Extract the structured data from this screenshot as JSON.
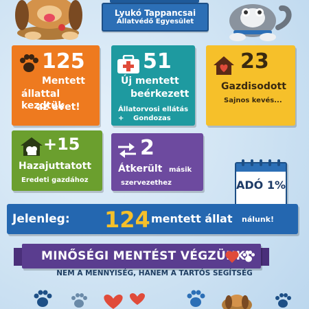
{
  "header": {
    "org_name": "Lyukó Tappancsai",
    "org_subtitle": "Állatvédő Egyesület"
  },
  "stats": {
    "start": {
      "number": "125",
      "line1": "Mentett",
      "line2": "állattal kezdtük",
      "line3": "az évet!",
      "icon": "paw-icon"
    },
    "new": {
      "number": "51",
      "line1": "Új mentett",
      "line2": "beérkezett",
      "line3": "Állatorvosi ellátás +",
      "line4": "Gondozas",
      "icon": "first-aid-kit-icon"
    },
    "adopted": {
      "number": "23",
      "line1": "Gazdisodott",
      "line2": "Sajnos kevés...",
      "icon": "home-heart-icon"
    },
    "returned": {
      "number": "+15",
      "line1": "Hazajuttatott",
      "line2": "Eredeti gazdához",
      "icon": "doghouse-icon"
    },
    "transferred": {
      "number": "2",
      "line1a": "Átkerült",
      "line1b": "másik",
      "line2": "szervezethez",
      "icon": "transfer-arrows-icon"
    }
  },
  "calendar": {
    "text": "ADÓ 1%"
  },
  "current": {
    "prefix": "Jelenleg:",
    "number": "124",
    "label": "mentett állat",
    "suffix": "nálunk!"
  },
  "quality": {
    "title": "MINŐSÉGI MENTÉST VÉGZÜNK!",
    "subtitle": "NEM A MENNYISÉG, HANEM A TARTÓS SEGÍTSÉG"
  },
  "colors": {
    "orange": "#ee7a1f",
    "teal": "#1e9aa0",
    "yellow": "#f6c02a",
    "green": "#6b9f2e",
    "purple": "#6d4a9f",
    "blue": "#2467b0",
    "heart": "#e04b3a"
  }
}
